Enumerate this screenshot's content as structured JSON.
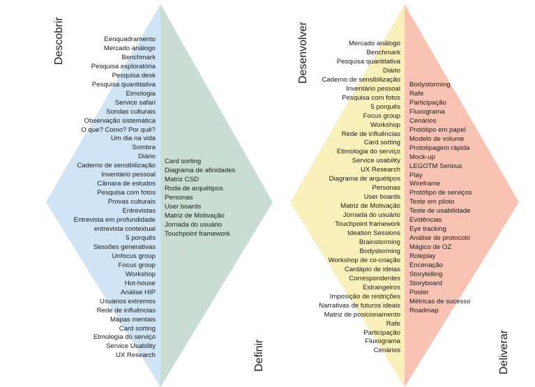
{
  "diagram": {
    "left_panel": {
      "top_label": "Descobrir",
      "bottom_label": "Definir",
      "colors": {
        "left_half": "#cfe4f4",
        "right_half": "#c9ddd5"
      },
      "descobrir_items": [
        "Eenquadramento",
        "Mercado análogo",
        "Benchmark",
        "Pesquisa exploratória",
        "Pesquisa desk",
        "Pesquisa quantitativa",
        "Etmologia",
        "Service safari",
        "Sondas culturais",
        "Observação sistemática",
        "O que? Como? Por quê?",
        "Um dia na vida",
        "Sombra",
        "Diário",
        "Caderno de sensibilização",
        "Inventário pessoal",
        "Câmara de estudos",
        "Pesquisa com fotos",
        "Provas culturais",
        "Entrevistas",
        "Entrevista em profundidade",
        "entrevista contextual",
        "5 porquês",
        "Sessões generativas",
        "Unfocus group",
        "Focus group",
        "Workshop",
        "Hot-house",
        "Análise HIP",
        "Usuários extremos",
        "Rede de influências",
        "Mapas mentais",
        "Card sorting",
        "Etmologia do serviço",
        "Service Usability",
        "UX Research"
      ],
      "definir_items": [
        "Card sorting",
        "Diagrama de afinidades",
        "Matriz CSD",
        "Roda de arquétipos",
        "Personas",
        "User boards",
        "Matriz de Motivação",
        "Jornada do usuário",
        "Touchpoint framework"
      ]
    },
    "right_panel": {
      "top_label": "Desenvolver",
      "bottom_label": "Deliverar",
      "colors": {
        "left_half": "#faf0b9",
        "right_half": "#f8c3b3"
      },
      "desenvolver_items": [
        "Mercado análogo",
        "Benchmark",
        "Pesquisa quantitativa",
        "Diário",
        "Caderno de sensibilização",
        "Inventário pessoal",
        "Pesquisa com fotos",
        "5 porquês",
        "Focus group",
        "Workshop",
        "Rede de influências",
        "Card sorting",
        "Etimologia do serviço",
        "Service usability",
        "UX Research",
        "Diagrama de arquétipos",
        "Personas",
        "User boards",
        "Matriz de Motivação",
        "Jornada do usuário",
        "Touchpoint framework",
        "Ideation Sessions",
        "Brainstorming",
        "Bodystorming",
        "Workshop de co-criação",
        "Cardápio de ideias",
        "Correspondentes",
        "Estrangeiros",
        "Imposição de restrições",
        "Narrativas de futuros ideais",
        "Matriz de posicionamento",
        "Rafe",
        "Participação",
        "Fluxograma",
        "Cenários"
      ],
      "deliverar_items": [
        "Bodystorming",
        "Rafe",
        "Participação",
        "Fluxograma",
        "Cenários",
        "Protótipo em papel",
        "Modelo de volume",
        "Prototipagem rápida",
        "Mock-up",
        "LEGOTM Serious",
        "Play",
        "Wireframe",
        "Protótipo de serviços",
        "Teste em piloto",
        "Teste de usabilidade",
        "Evidências",
        "Eye tracking",
        "Análise de protocolo",
        "Mágico de OZ",
        "Roleplay",
        "Encenação",
        "Storytelling",
        "Storyboard",
        "Poster",
        "Métricas de sucesso",
        "Roadmap"
      ]
    }
  }
}
